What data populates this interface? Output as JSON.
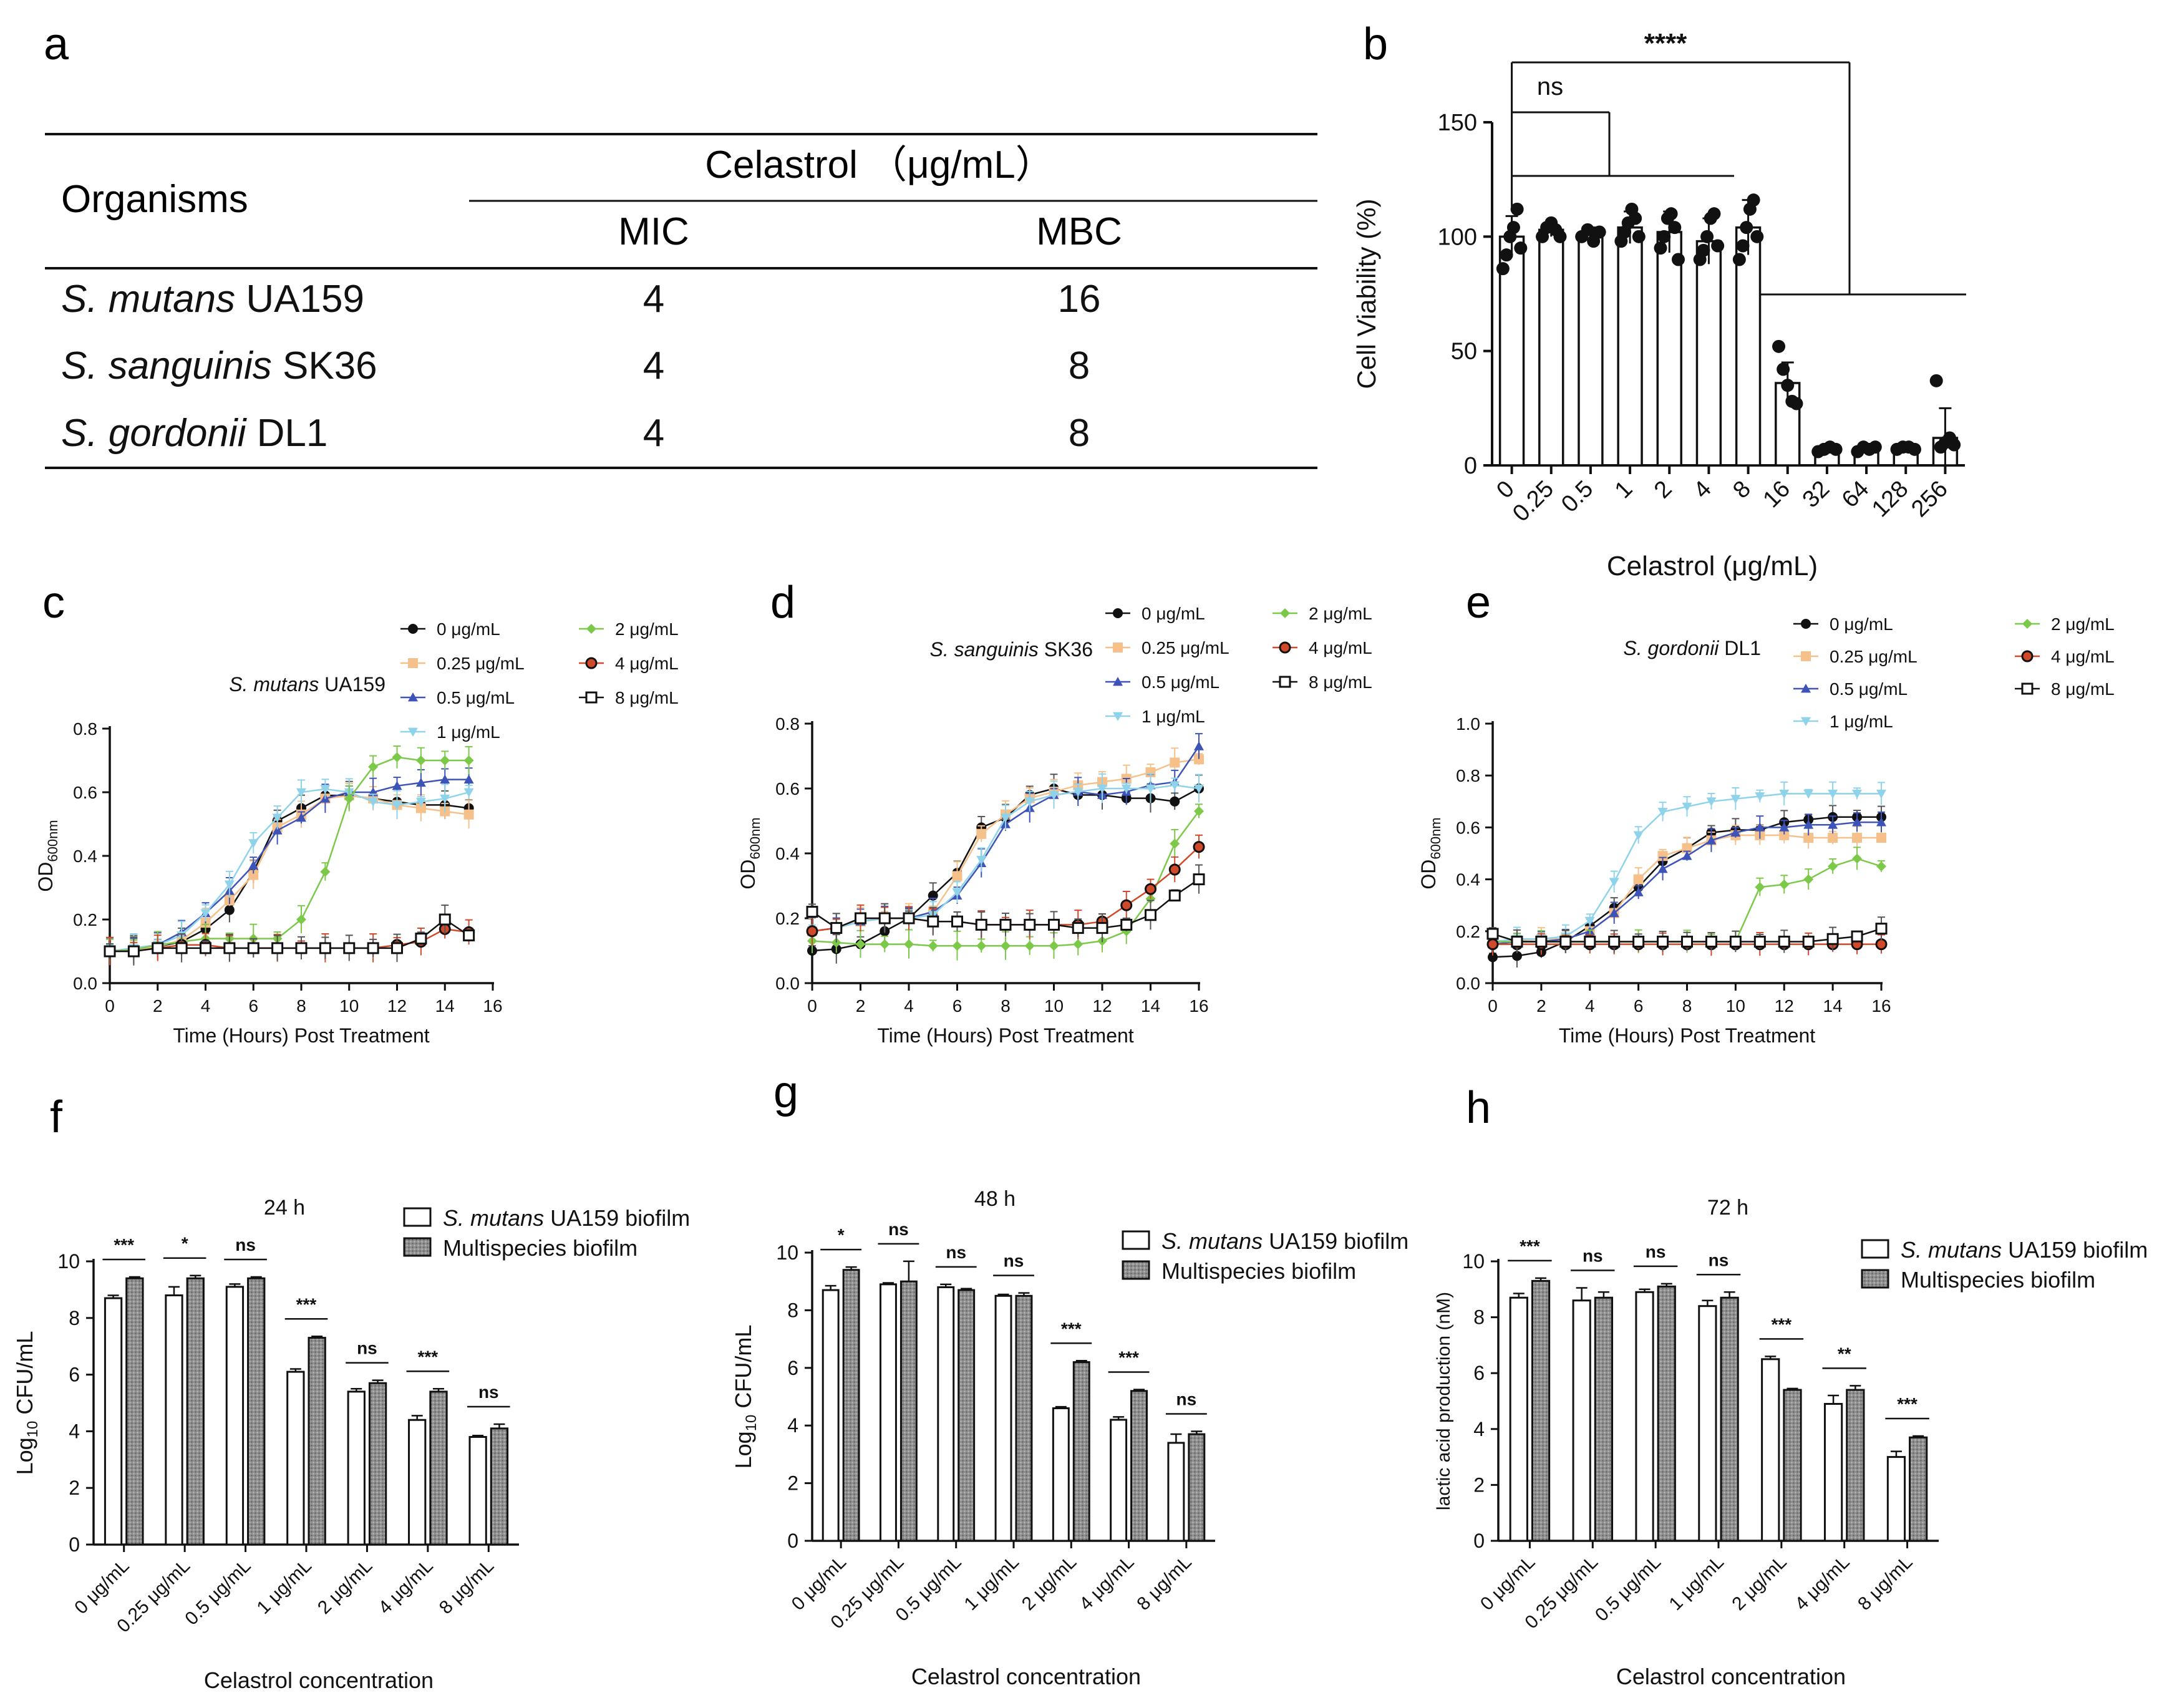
{
  "panels": {
    "a": "a",
    "b": "b",
    "c": "c",
    "d": "d",
    "e": "e",
    "f": "f",
    "g": "g",
    "h": "h"
  },
  "table_a": {
    "col_organisms": "Organisms",
    "col_group": "Celastrol （μg/mL）",
    "col_mic": "MIC",
    "col_mbc": "MBC",
    "rows": [
      {
        "species": "S. mutans",
        "strain": " UA159",
        "mic": "4",
        "mbc": "16"
      },
      {
        "species": "S. sanguinis",
        "strain": " SK36",
        "mic": "4",
        "mbc": "8"
      },
      {
        "species": "S. gordonii",
        "strain": " DL1",
        "mic": "4",
        "mbc": "8"
      }
    ]
  },
  "chart_data": [
    {
      "id": "b",
      "type": "bar",
      "ylabel": "Cell Viability (%)",
      "xlabel": "Celastrol (μg/mL)",
      "ylim": [
        0,
        150
      ],
      "yticks": [
        0,
        50,
        100,
        150
      ],
      "categories": [
        "0",
        "0.25",
        "0.5",
        "1",
        "2",
        "4",
        "8",
        "16",
        "32",
        "64",
        "128",
        "256"
      ],
      "values": [
        100,
        103,
        101,
        104,
        102,
        98,
        104,
        36,
        7,
        7,
        8,
        12
      ],
      "errors": [
        9,
        3,
        3,
        7,
        9,
        10,
        12,
        9,
        1,
        1,
        1,
        13
      ],
      "points": [
        [
          86,
          92,
          100,
          104,
          112,
          95
        ],
        [
          100,
          104,
          106,
          103,
          100
        ],
        [
          100,
          103,
          98,
          102
        ],
        [
          98,
          102,
          106,
          112,
          108,
          100
        ],
        [
          95,
          100,
          108,
          110,
          104,
          90
        ],
        [
          90,
          94,
          100,
          108,
          110,
          96
        ],
        [
          90,
          96,
          104,
          112,
          116,
          100
        ],
        [
          52,
          42,
          35,
          28,
          27
        ],
        [
          6,
          7,
          8,
          7
        ],
        [
          6,
          8,
          7,
          8
        ],
        [
          7,
          8,
          8,
          7
        ],
        [
          37,
          8,
          10,
          12,
          9
        ]
      ],
      "significance": [
        {
          "label": "****",
          "from": "0",
          "to": "16-256"
        },
        {
          "label": "ns",
          "from": "0",
          "to": "0.25-8"
        }
      ]
    },
    {
      "id": "c",
      "type": "line",
      "title": "S. mutans UA159",
      "xlabel": "Time (Hours) Post Treatment",
      "ylabel": "OD600nm",
      "xlim": [
        0,
        16
      ],
      "ylim": [
        0,
        0.8
      ],
      "xticks": [
        0,
        2,
        4,
        6,
        8,
        10,
        12,
        14,
        16
      ],
      "yticks": [
        0.0,
        0.2,
        0.4,
        0.6,
        0.8
      ],
      "x": [
        0,
        1,
        2,
        3,
        4,
        5,
        6,
        7,
        8,
        9,
        10,
        11,
        12,
        13,
        14,
        15
      ],
      "series": [
        {
          "name": "0 μg/mL",
          "values": [
            0.1,
            0.105,
            0.115,
            0.13,
            0.17,
            0.23,
            0.35,
            0.51,
            0.55,
            0.59,
            0.59,
            0.58,
            0.57,
            0.56,
            0.56,
            0.55
          ]
        },
        {
          "name": "0.25 μg/mL",
          "values": [
            0.1,
            0.105,
            0.115,
            0.135,
            0.19,
            0.26,
            0.34,
            0.49,
            0.53,
            0.58,
            0.59,
            0.58,
            0.56,
            0.55,
            0.54,
            0.53
          ]
        },
        {
          "name": "0.5 μg/mL",
          "values": [
            0.1,
            0.11,
            0.12,
            0.16,
            0.22,
            0.29,
            0.37,
            0.48,
            0.52,
            0.58,
            0.6,
            0.6,
            0.62,
            0.63,
            0.64,
            0.64
          ]
        },
        {
          "name": "1 μg/mL",
          "values": [
            0.1,
            0.11,
            0.12,
            0.15,
            0.22,
            0.31,
            0.44,
            0.52,
            0.6,
            0.61,
            0.6,
            0.57,
            0.56,
            0.57,
            0.58,
            0.6
          ]
        },
        {
          "name": "2 μg/mL",
          "values": [
            0.1,
            0.105,
            0.12,
            0.13,
            0.14,
            0.14,
            0.14,
            0.14,
            0.2,
            0.35,
            0.58,
            0.68,
            0.71,
            0.7,
            0.7,
            0.7
          ]
        },
        {
          "name": "4 μg/mL",
          "values": [
            0.1,
            0.1,
            0.11,
            0.12,
            0.12,
            0.11,
            0.11,
            0.11,
            0.11,
            0.11,
            0.11,
            0.11,
            0.12,
            0.13,
            0.17,
            0.16
          ]
        },
        {
          "name": "8 μg/mL",
          "values": [
            0.1,
            0.1,
            0.11,
            0.11,
            0.11,
            0.11,
            0.11,
            0.11,
            0.11,
            0.11,
            0.11,
            0.11,
            0.11,
            0.14,
            0.2,
            0.15
          ]
        }
      ]
    },
    {
      "id": "d",
      "type": "line",
      "title": "S. sanguinis SK36",
      "xlabel": "Time (Hours) Post Treatment",
      "ylabel": "OD600nm",
      "xlim": [
        0,
        16
      ],
      "ylim": [
        0,
        0.8
      ],
      "xticks": [
        0,
        2,
        4,
        6,
        8,
        10,
        12,
        14,
        16
      ],
      "yticks": [
        0.0,
        0.2,
        0.4,
        0.6,
        0.8
      ],
      "x": [
        0,
        1,
        2,
        3,
        4,
        5,
        6,
        7,
        8,
        9,
        10,
        11,
        12,
        13,
        14,
        15,
        16
      ],
      "series": [
        {
          "name": "0 μg/mL",
          "values": [
            0.1,
            0.105,
            0.12,
            0.16,
            0.2,
            0.27,
            0.34,
            0.48,
            0.51,
            0.58,
            0.6,
            0.58,
            0.58,
            0.57,
            0.57,
            0.56,
            0.6
          ]
        },
        {
          "name": "0.25 μg/mL",
          "values": [
            0.16,
            0.17,
            0.19,
            0.2,
            0.2,
            0.22,
            0.33,
            0.46,
            0.52,
            0.57,
            0.59,
            0.61,
            0.62,
            0.63,
            0.65,
            0.68,
            0.69
          ]
        },
        {
          "name": "0.5 μg/mL",
          "values": [
            0.16,
            0.17,
            0.19,
            0.2,
            0.2,
            0.22,
            0.27,
            0.37,
            0.49,
            0.54,
            0.58,
            0.59,
            0.58,
            0.59,
            0.61,
            0.62,
            0.73
          ]
        },
        {
          "name": "1 μg/mL",
          "values": [
            0.16,
            0.17,
            0.19,
            0.2,
            0.2,
            0.21,
            0.28,
            0.38,
            0.51,
            0.56,
            0.58,
            0.59,
            0.6,
            0.6,
            0.6,
            0.61,
            0.6
          ]
        },
        {
          "name": "2 μg/mL",
          "values": [
            0.13,
            0.125,
            0.12,
            0.12,
            0.12,
            0.115,
            0.115,
            0.115,
            0.115,
            0.115,
            0.115,
            0.12,
            0.13,
            0.16,
            0.26,
            0.43,
            0.53
          ]
        },
        {
          "name": "4 μg/mL",
          "values": [
            0.16,
            0.17,
            0.2,
            0.2,
            0.2,
            0.19,
            0.19,
            0.18,
            0.18,
            0.18,
            0.18,
            0.18,
            0.19,
            0.24,
            0.29,
            0.35,
            0.42
          ]
        },
        {
          "name": "8 μg/mL",
          "values": [
            0.22,
            0.17,
            0.2,
            0.2,
            0.2,
            0.19,
            0.19,
            0.18,
            0.18,
            0.18,
            0.18,
            0.17,
            0.17,
            0.18,
            0.21,
            0.27,
            0.32
          ]
        }
      ]
    },
    {
      "id": "e",
      "type": "line",
      "title": "S. gordonii DL1",
      "xlabel": "Time (Hours) Post Treatment",
      "ylabel": "OD600nm",
      "xlim": [
        0,
        16
      ],
      "ylim": [
        0,
        1.0
      ],
      "xticks": [
        0,
        2,
        4,
        6,
        8,
        10,
        12,
        14,
        16
      ],
      "yticks": [
        0.0,
        0.2,
        0.4,
        0.6,
        0.8,
        1.0
      ],
      "x": [
        0,
        1,
        2,
        3,
        4,
        5,
        6,
        7,
        8,
        9,
        10,
        11,
        12,
        13,
        14,
        15,
        16
      ],
      "series": [
        {
          "name": "0 μg/mL",
          "values": [
            0.1,
            0.105,
            0.12,
            0.16,
            0.22,
            0.29,
            0.37,
            0.47,
            0.52,
            0.58,
            0.59,
            0.59,
            0.62,
            0.63,
            0.64,
            0.64,
            0.64
          ]
        },
        {
          "name": "0.25 μg/mL",
          "values": [
            0.16,
            0.165,
            0.17,
            0.17,
            0.2,
            0.27,
            0.4,
            0.49,
            0.52,
            0.55,
            0.57,
            0.57,
            0.57,
            0.56,
            0.56,
            0.56,
            0.56
          ]
        },
        {
          "name": "0.5 μg/mL",
          "values": [
            0.15,
            0.16,
            0.16,
            0.17,
            0.2,
            0.27,
            0.35,
            0.44,
            0.49,
            0.55,
            0.58,
            0.6,
            0.6,
            0.61,
            0.61,
            0.62,
            0.62
          ]
        },
        {
          "name": "1 μg/mL",
          "values": [
            0.16,
            0.17,
            0.17,
            0.18,
            0.24,
            0.39,
            0.57,
            0.66,
            0.68,
            0.7,
            0.71,
            0.72,
            0.73,
            0.73,
            0.73,
            0.73,
            0.73
          ]
        },
        {
          "name": "2 μg/mL",
          "values": [
            0.16,
            0.16,
            0.16,
            0.16,
            0.16,
            0.16,
            0.16,
            0.16,
            0.16,
            0.16,
            0.16,
            0.37,
            0.38,
            0.4,
            0.45,
            0.48,
            0.45
          ]
        },
        {
          "name": "4 μg/mL",
          "values": [
            0.15,
            0.15,
            0.15,
            0.15,
            0.15,
            0.15,
            0.15,
            0.15,
            0.15,
            0.15,
            0.15,
            0.15,
            0.15,
            0.15,
            0.15,
            0.15,
            0.15
          ]
        },
        {
          "name": "8 μg/mL",
          "values": [
            0.19,
            0.16,
            0.16,
            0.16,
            0.16,
            0.16,
            0.16,
            0.16,
            0.16,
            0.16,
            0.16,
            0.16,
            0.16,
            0.16,
            0.17,
            0.18,
            0.21
          ]
        }
      ]
    },
    {
      "id": "f",
      "type": "bar",
      "title": "24 h",
      "xlabel": "Celastrol concentration",
      "ylabel": "Log10 CFU/mL",
      "ylim": [
        0,
        10
      ],
      "yticks": [
        0,
        2,
        4,
        6,
        8,
        10
      ],
      "categories": [
        "0 μg/mL",
        "0.25 μg/mL",
        "0.5 μg/mL",
        "1 μg/mL",
        "2 μg/mL",
        "4 μg/mL",
        "8 μg/mL"
      ],
      "series": [
        {
          "name": "S. mutans UA159 biofilm",
          "values": [
            8.7,
            8.8,
            9.1,
            6.1,
            5.4,
            4.4,
            3.8
          ],
          "errors": [
            0.1,
            0.3,
            0.1,
            0.1,
            0.1,
            0.15,
            0.05
          ]
        },
        {
          "name": "Multispecies biofilm",
          "values": [
            9.4,
            9.4,
            9.4,
            7.3,
            5.7,
            5.4,
            4.1
          ],
          "errors": [
            0.05,
            0.1,
            0.05,
            0.05,
            0.1,
            0.1,
            0.15
          ]
        }
      ],
      "significance": [
        "***",
        "*",
        "ns",
        "***",
        "ns",
        "***",
        "ns"
      ]
    },
    {
      "id": "g",
      "type": "bar",
      "title": "48 h",
      "xlabel": "Celastrol concentration",
      "ylabel": "Log10 CFU/mL",
      "ylim": [
        0,
        10
      ],
      "yticks": [
        0,
        2,
        4,
        6,
        8,
        10
      ],
      "categories": [
        "0 μg/mL",
        "0.25 μg/mL",
        "0.5 μg/mL",
        "1 μg/mL",
        "2 μg/mL",
        "4 μg/mL",
        "8 μg/mL"
      ],
      "series": [
        {
          "name": "S. mutans UA159 biofilm",
          "values": [
            8.7,
            8.9,
            8.8,
            8.5,
            4.6,
            4.2,
            3.4
          ],
          "errors": [
            0.15,
            0.05,
            0.1,
            0.05,
            0.05,
            0.1,
            0.3
          ]
        },
        {
          "name": "Multispecies biofilm",
          "values": [
            9.4,
            9.0,
            8.7,
            8.5,
            6.2,
            5.2,
            3.7
          ],
          "errors": [
            0.1,
            0.7,
            0.05,
            0.1,
            0.05,
            0.05,
            0.1
          ]
        }
      ],
      "significance": [
        "*",
        "ns",
        "ns",
        "ns",
        "***",
        "***",
        "ns"
      ]
    },
    {
      "id": "h",
      "type": "bar",
      "title": "72 h",
      "xlabel": "Celastrol concentration",
      "ylabel": "lactic acid production (nM)",
      "ylim": [
        0,
        10
      ],
      "yticks": [
        0,
        2,
        4,
        6,
        8,
        10
      ],
      "categories": [
        "0 μg/mL",
        "0.25 μg/mL",
        "0.5 μg/mL",
        "1 μg/mL",
        "2 μg/mL",
        "4 μg/mL",
        "8 μg/mL"
      ],
      "series": [
        {
          "name": "S. mutans UA159 biofilm",
          "values": [
            8.7,
            8.6,
            8.9,
            8.4,
            6.5,
            4.9,
            3.0
          ],
          "errors": [
            0.15,
            0.45,
            0.1,
            0.2,
            0.1,
            0.3,
            0.2
          ]
        },
        {
          "name": "Multispecies biofilm",
          "values": [
            9.3,
            8.7,
            9.1,
            8.7,
            5.4,
            5.4,
            3.7
          ],
          "errors": [
            0.1,
            0.2,
            0.1,
            0.2,
            0.05,
            0.15,
            0.05
          ]
        }
      ],
      "significance": [
        "***",
        "ns",
        "ns",
        "ns",
        "***",
        "**",
        "***"
      ]
    }
  ],
  "legend_styles": [
    {
      "color": "#111111",
      "marker": "circle-filled"
    },
    {
      "color": "#f6c08a",
      "marker": "square-filled"
    },
    {
      "color": "#3d53b8",
      "marker": "triangle-up"
    },
    {
      "color": "#8fd3ea",
      "marker": "triangle-down"
    },
    {
      "color": "#7cc94a",
      "marker": "diamond"
    },
    {
      "color": "#d0492a",
      "marker": "circle-ring"
    },
    {
      "color": "#111111",
      "marker": "square-open"
    }
  ],
  "colors": {
    "ink": "#111111",
    "bar_fill_b": "#ffffff",
    "mono_fill": "#ffffff",
    "multi_fill": "#9a9a9a"
  }
}
